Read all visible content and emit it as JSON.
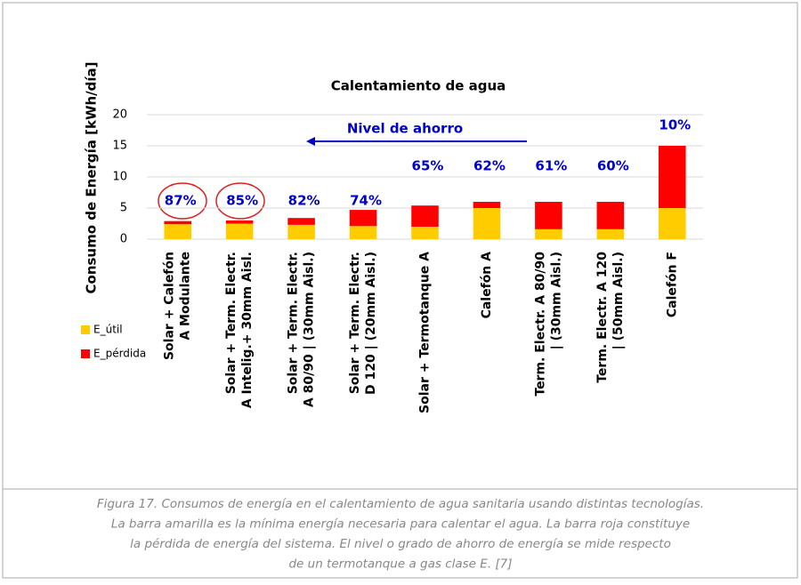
{
  "chart_data": {
    "type": "bar",
    "stacked": true,
    "title": "Calentamiento de agua",
    "y_label": "Consumo de Energía [kWh/día]",
    "categories": [
      [
        "Solar + Calefón",
        "A Modulante"
      ],
      [
        "Solar + Term. Electr.",
        "A Intelig.+ 30mm Aisl."
      ],
      [
        "Solar + Term. Electr.",
        "A 80/90 | (30mm Aisl.)"
      ],
      [
        "Solar + Term. Electr.",
        "D 120 | (20mm Aisl.)"
      ],
      [
        "Solar + Termotanque A"
      ],
      [
        "Calefón A"
      ],
      [
        "Term. Electr. A 80/90",
        "| (30mm Aisl.)"
      ],
      [
        "Term. Electr. A 120",
        "| (50mm Aisl.)"
      ],
      [
        "Calefón F"
      ]
    ],
    "series": [
      {
        "name": "E_útil",
        "color": "#ffcc00",
        "values": [
          2.4,
          2.5,
          2.3,
          2.1,
          2.0,
          5.0,
          1.6,
          1.6,
          5.0
        ]
      },
      {
        "name": "E_pérdida",
        "color": "#ff0000",
        "values": [
          0.5,
          0.5,
          1.1,
          2.6,
          3.4,
          1.0,
          4.4,
          4.4,
          10.0
        ]
      }
    ],
    "savings": {
      "label": "Nivel de ahorro",
      "color": "#0000cc",
      "values": [
        87,
        85,
        82,
        74,
        65,
        62,
        61,
        60,
        10
      ],
      "value_labels": [
        "87%",
        "85%",
        "82%",
        "74%",
        "65%",
        "62%",
        "61%",
        "60%",
        "10%"
      ]
    },
    "ylim": [
      0,
      20
    ],
    "yticks": [
      0,
      5,
      10,
      15,
      20
    ],
    "grid": true,
    "legend": "left"
  },
  "caption": [
    "Figura 17. Consumos de energía en el calentamiento de agua sanitaria usando distintas tecnologías.",
    "La barra amarilla es la mínima energía necesaria para calentar el agua. La barra roja constituye",
    "la pérdida de energía del sistema. El nivel o grado de ahorro de energía se mide respecto",
    "de un termotanque a gas clase E. [7]"
  ]
}
